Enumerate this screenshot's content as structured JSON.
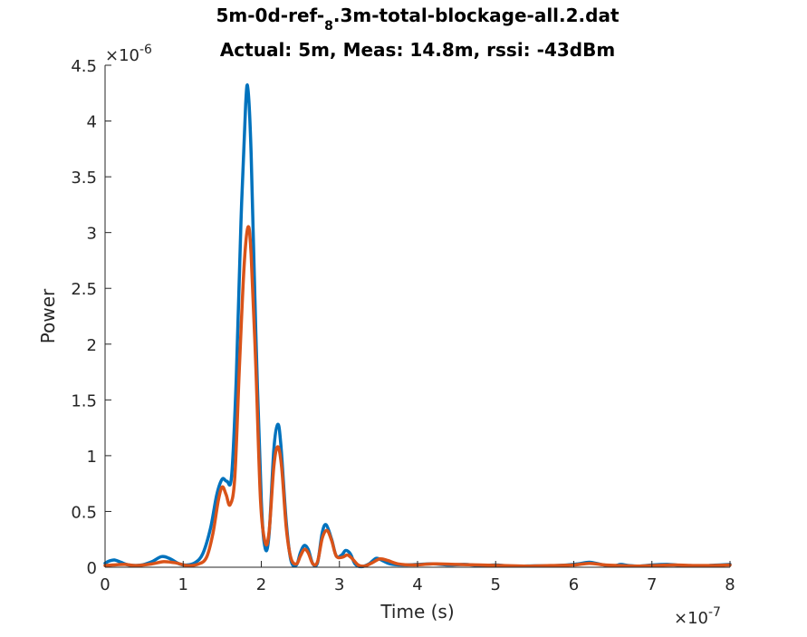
{
  "chart_data": {
    "type": "line",
    "title_main": "5m-0d-ref-",
    "title_sub": "8",
    "title_rest": ".3m-total-blockage-all.2.dat",
    "subtitle": "Actual: 5m, Meas: 14.8m, rssi: -43dBm",
    "xlabel": "Time (s)",
    "ylabel": "Power",
    "x_exponent_prefix": "×10",
    "x_exponent": "-7",
    "y_exponent_prefix": "×10",
    "y_exponent": "-6",
    "xlim": [
      0,
      8e-07
    ],
    "ylim": [
      0,
      4.5e-06
    ],
    "x_ticks": [
      0,
      1e-07,
      2e-07,
      3e-07,
      4e-07,
      5e-07,
      6e-07,
      7e-07,
      8e-07
    ],
    "x_tick_labels": [
      "0",
      "1",
      "2",
      "3",
      "4",
      "5",
      "6",
      "7",
      "8"
    ],
    "y_ticks": [
      0,
      5e-07,
      1e-06,
      1.5e-06,
      2e-06,
      2.5e-06,
      3e-06,
      3.5e-06,
      4e-06,
      4.5e-06
    ],
    "y_tick_labels": [
      "0",
      "0.5",
      "1",
      "1.5",
      "2",
      "2.5",
      "3",
      "3.5",
      "4",
      "4.5"
    ],
    "grid": false,
    "series": [
      {
        "color": "#0072BD",
        "points": [
          [
            0,
            3.5e-08
          ],
          [
            5e-09,
            5.5e-08
          ],
          [
            1.2e-08,
            6.5e-08
          ],
          [
            2e-08,
            4.5e-08
          ],
          [
            3e-08,
            2e-08
          ],
          [
            4.5e-08,
            1.8e-08
          ],
          [
            6e-08,
            5e-08
          ],
          [
            7.2e-08,
            9.5e-08
          ],
          [
            8.2e-08,
            8e-08
          ],
          [
            9.5e-08,
            3e-08
          ],
          [
            1.05e-07,
            2e-08
          ],
          [
            1.15e-07,
            4e-08
          ],
          [
            1.25e-07,
            1.2e-07
          ],
          [
            1.35e-07,
            3.5e-07
          ],
          [
            1.43e-07,
            6.5e-07
          ],
          [
            1.5e-07,
            7.9e-07
          ],
          [
            1.56e-07,
            7.7e-07
          ],
          [
            1.62e-07,
            8.2e-07
          ],
          [
            1.68e-07,
            1.7e-06
          ],
          [
            1.74e-07,
            3.1e-06
          ],
          [
            1.8e-07,
            4.15e-06
          ],
          [
            1.83e-07,
            4.28e-06
          ],
          [
            1.87e-07,
            3.7e-06
          ],
          [
            1.93e-07,
            2.1e-06
          ],
          [
            2e-07,
            6e-07
          ],
          [
            2.05e-07,
            1.7e-07
          ],
          [
            2.1e-07,
            3e-07
          ],
          [
            2.16e-07,
            1.05e-06
          ],
          [
            2.21e-07,
            1.28e-06
          ],
          [
            2.25e-07,
            1.1e-06
          ],
          [
            2.32e-07,
            4e-07
          ],
          [
            2.38e-07,
            6e-08
          ],
          [
            2.45e-07,
            2e-08
          ],
          [
            2.5e-07,
            1.3e-07
          ],
          [
            2.55e-07,
            1.95e-07
          ],
          [
            2.6e-07,
            1.6e-07
          ],
          [
            2.66e-07,
            3e-08
          ],
          [
            2.72e-07,
            4e-08
          ],
          [
            2.78e-07,
            3.1e-07
          ],
          [
            2.83e-07,
            3.8e-07
          ],
          [
            2.9e-07,
            2.5e-07
          ],
          [
            2.96e-07,
            1e-07
          ],
          [
            3.03e-07,
            1.1e-07
          ],
          [
            3.08e-07,
            1.5e-07
          ],
          [
            3.14e-07,
            1.2e-07
          ],
          [
            3.2e-07,
            3e-08
          ],
          [
            3.28e-07,
            5e-09
          ],
          [
            3.38e-07,
            3e-08
          ],
          [
            3.47e-07,
            8e-08
          ],
          [
            3.55e-07,
            6e-08
          ],
          [
            3.65e-07,
            3e-08
          ],
          [
            3.8e-07,
            2e-08
          ],
          [
            4e-07,
            2.5e-08
          ],
          [
            4.2e-07,
            3e-08
          ],
          [
            4.4e-07,
            2e-08
          ],
          [
            4.6e-07,
            2.5e-08
          ],
          [
            4.8e-07,
            1.5e-08
          ],
          [
            5e-07,
            2e-08
          ],
          [
            5.2e-07,
            1e-08
          ],
          [
            5.5e-07,
            1.2e-08
          ],
          [
            5.8e-07,
            1.5e-08
          ],
          [
            6.05e-07,
            3e-08
          ],
          [
            6.2e-07,
            4.5e-08
          ],
          [
            6.35e-07,
            2.5e-08
          ],
          [
            6.5e-07,
            1e-08
          ],
          [
            6.6e-07,
            2.5e-08
          ],
          [
            6.7e-07,
            1.5e-08
          ],
          [
            6.85e-07,
            1e-08
          ],
          [
            7e-07,
            2e-08
          ],
          [
            7.2e-07,
            2.5e-08
          ],
          [
            7.4e-07,
            1.5e-08
          ],
          [
            7.6e-07,
            1e-08
          ],
          [
            7.8e-07,
            1.8e-08
          ],
          [
            8e-07,
            2.5e-08
          ]
        ]
      },
      {
        "color": "#D95319",
        "points": [
          [
            0,
            1.5e-08
          ],
          [
            1e-08,
            2e-08
          ],
          [
            2.5e-08,
            2.5e-08
          ],
          [
            4e-08,
            1.5e-08
          ],
          [
            6e-08,
            3e-08
          ],
          [
            7.5e-08,
            5e-08
          ],
          [
            9e-08,
            4e-08
          ],
          [
            1.05e-07,
            1.5e-08
          ],
          [
            1.2e-07,
            3e-08
          ],
          [
            1.3e-07,
            9e-08
          ],
          [
            1.38e-07,
            3e-07
          ],
          [
            1.45e-07,
            6e-07
          ],
          [
            1.5e-07,
            7.2e-07
          ],
          [
            1.55e-07,
            6.5e-07
          ],
          [
            1.6e-07,
            5.6e-07
          ],
          [
            1.66e-07,
            8e-07
          ],
          [
            1.72e-07,
            1.8e-06
          ],
          [
            1.78e-07,
            2.7e-06
          ],
          [
            1.83e-07,
            3.05e-06
          ],
          [
            1.87e-07,
            2.8e-06
          ],
          [
            1.93e-07,
            1.8e-06
          ],
          [
            1.99e-07,
            6e-07
          ],
          [
            2.05e-07,
            2.2e-07
          ],
          [
            2.1e-07,
            3.2e-07
          ],
          [
            2.16e-07,
            9e-07
          ],
          [
            2.21e-07,
            1.08e-06
          ],
          [
            2.26e-07,
            9e-07
          ],
          [
            2.32e-07,
            3.5e-07
          ],
          [
            2.38e-07,
            8e-08
          ],
          [
            2.45e-07,
            3e-08
          ],
          [
            2.5e-07,
            1e-07
          ],
          [
            2.55e-07,
            1.6e-07
          ],
          [
            2.6e-07,
            1.3e-07
          ],
          [
            2.66e-07,
            3e-08
          ],
          [
            2.72e-07,
            5e-08
          ],
          [
            2.78e-07,
            2.6e-07
          ],
          [
            2.84e-07,
            3.3e-07
          ],
          [
            2.9e-07,
            2.4e-07
          ],
          [
            2.96e-07,
            1e-07
          ],
          [
            3.04e-07,
            9e-08
          ],
          [
            3.1e-07,
            1.1e-07
          ],
          [
            3.16e-07,
            8e-08
          ],
          [
            3.24e-07,
            2e-08
          ],
          [
            3.32e-07,
            1e-08
          ],
          [
            3.42e-07,
            4e-08
          ],
          [
            3.52e-07,
            7.5e-08
          ],
          [
            3.62e-07,
            6e-08
          ],
          [
            3.75e-07,
            3e-08
          ],
          [
            3.95e-07,
            2e-08
          ],
          [
            4.2e-07,
            3e-08
          ],
          [
            4.5e-07,
            2.5e-08
          ],
          [
            4.8e-07,
            2e-08
          ],
          [
            5.1e-07,
            1.5e-08
          ],
          [
            5.4e-07,
            1e-08
          ],
          [
            5.7e-07,
            1.5e-08
          ],
          [
            6e-07,
            2e-08
          ],
          [
            6.2e-07,
            3.5e-08
          ],
          [
            6.4e-07,
            2e-08
          ],
          [
            6.6e-07,
            1.5e-08
          ],
          [
            6.8e-07,
            1e-08
          ],
          [
            7e-07,
            1.5e-08
          ],
          [
            7.3e-07,
            2e-08
          ],
          [
            7.6e-07,
            1.5e-08
          ],
          [
            8e-07,
            2e-08
          ]
        ]
      }
    ]
  }
}
